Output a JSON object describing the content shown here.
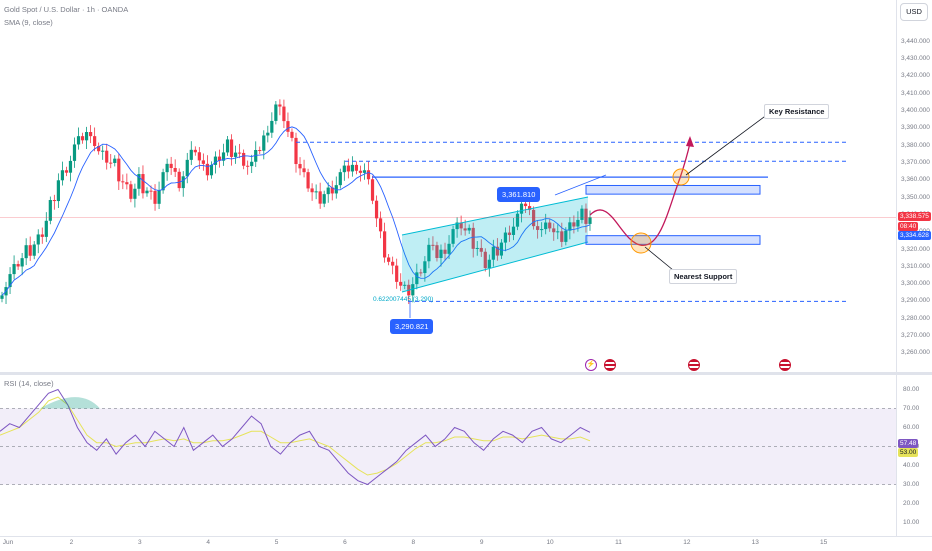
{
  "header": {
    "symbol_line": "Gold Spot / U.S. Dollar · 1h · OANDA",
    "sma_label": "SMA (9, close)",
    "currency_button": "USD",
    "rsi_label": "RSI (14, close)"
  },
  "colors": {
    "up": "#089981",
    "down": "#f23645",
    "sma": "#2962ff",
    "channel_fill": "#00bcd4",
    "zone_fill": "#2962ff",
    "projection": "#c2185b",
    "rsi_line": "#7e57c2",
    "rsi_ma": "#e6e35a",
    "rsi_band": "#ede7f6"
  },
  "price_axis": {
    "ticks": [
      "3,440.000",
      "3,430.000",
      "3,420.000",
      "3,410.000",
      "3,400.000",
      "3,390.000",
      "3,380.000",
      "3,370.000",
      "3,360.000",
      "3,350.000",
      "3,340.000",
      "3,330.000",
      "3,320.000",
      "3,310.000",
      "3,300.000",
      "3,290.000",
      "3,280.000",
      "3,270.000",
      "3,260.000"
    ],
    "current_price": "3,338.575",
    "countdown": "08:40",
    "sma_value": "3,334.628"
  },
  "rsi_axis": {
    "ticks": [
      "80.00",
      "70.00",
      "60.00",
      "50.00",
      "40.00",
      "30.00",
      "20.00",
      "10.00"
    ],
    "rsi_value": "57.48",
    "rsi_ma_value": "53.00"
  },
  "time_axis": {
    "ticks": [
      "Jun",
      "2",
      "3",
      "4",
      "5",
      "6",
      "8",
      "9",
      "10",
      "11",
      "12",
      "13",
      "15"
    ]
  },
  "annotations": {
    "key_resistance": "Key Resistance",
    "nearest_support": "Nearest Support",
    "swing_high_tag": "3,361.810",
    "swing_low_tag": "3,290.821",
    "fib_label": "0.622007445 (3,290)"
  },
  "chart_data": {
    "type": "candlestick",
    "symbol": "Gold Spot / U.S. Dollar",
    "timeframe": "1h",
    "ylim": [
      3255,
      3448
    ],
    "sma_period": 9,
    "close_path": [
      3298,
      3304,
      3312,
      3318,
      3322,
      3330,
      3345,
      3360,
      3368,
      3378,
      3384,
      3390,
      3375,
      3372,
      3368,
      3358,
      3352,
      3360,
      3354,
      3350,
      3362,
      3368,
      3360,
      3370,
      3378,
      3365,
      3368,
      3374,
      3380,
      3376,
      3372,
      3368,
      3378,
      3392,
      3402,
      3396,
      3380,
      3366,
      3358,
      3350,
      3352,
      3356,
      3362,
      3366,
      3370,
      3364,
      3350,
      3326,
      3312,
      3304,
      3296,
      3300,
      3310,
      3320,
      3316,
      3322,
      3330,
      3334,
      3328,
      3320,
      3312,
      3318,
      3324,
      3332,
      3338,
      3346,
      3338,
      3330,
      3334,
      3326,
      3330,
      3336,
      3340,
      3338.575
    ],
    "rsi_path": [
      58,
      62,
      60,
      66,
      72,
      78,
      80,
      72,
      60,
      52,
      48,
      54,
      46,
      52,
      56,
      50,
      58,
      54,
      50,
      60,
      48,
      52,
      56,
      50,
      54,
      60,
      66,
      62,
      50,
      46,
      52,
      56,
      58,
      50,
      48,
      42,
      36,
      32,
      30,
      34,
      38,
      42,
      48,
      52,
      56,
      50,
      54,
      60,
      58,
      52,
      48,
      54,
      58,
      56,
      52,
      58,
      60,
      54,
      52,
      56,
      60,
      57.48
    ],
    "rsi_ma_path": [
      56,
      58,
      60,
      64,
      68,
      74,
      76,
      72,
      64,
      56,
      52,
      52,
      50,
      51,
      52,
      52,
      53,
      54,
      53,
      54,
      52,
      52,
      53,
      53,
      54,
      56,
      58,
      58,
      55,
      52,
      52,
      53,
      54,
      52,
      50,
      46,
      42,
      38,
      35,
      36,
      38,
      41,
      45,
      49,
      52,
      52,
      53,
      55,
      55,
      54,
      53,
      53,
      55,
      55,
      54,
      55,
      56,
      55,
      54,
      54,
      55,
      53.0
    ],
    "levels": {
      "key_resistance": 3361.81,
      "upper_dashed_1": 3382,
      "upper_dashed_2": 3371,
      "lower_dashed": 3290,
      "swing_low": 3290.821,
      "resistance_zone": [
        3352,
        3357
      ],
      "support_zone": [
        3323,
        3328
      ]
    },
    "rsi_bands": [
      30,
      50,
      70
    ]
  }
}
